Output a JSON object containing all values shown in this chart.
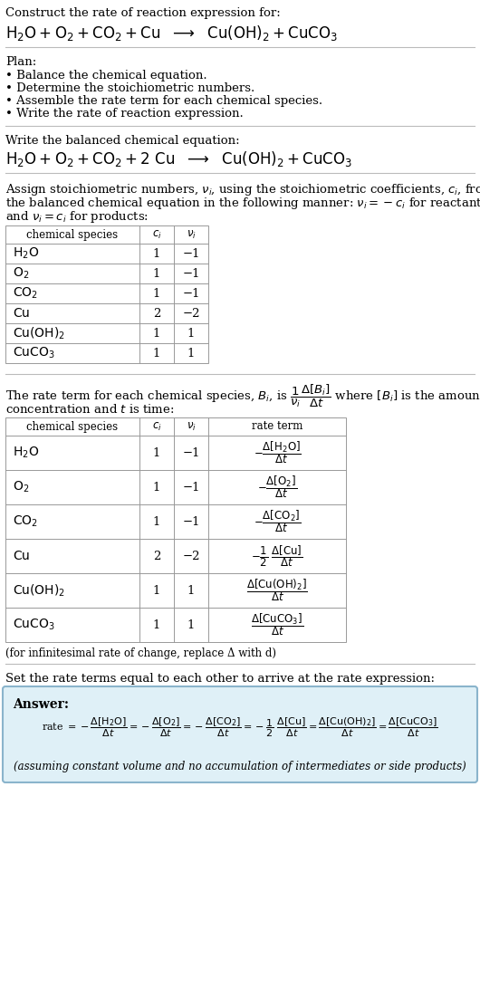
{
  "bg_color": "#ffffff",
  "title_line1": "Construct the rate of reaction expression for:",
  "plan_header": "Plan:",
  "plan_items": [
    "• Balance the chemical equation.",
    "• Determine the stoichiometric numbers.",
    "• Assemble the rate term for each chemical species.",
    "• Write the rate of reaction expression."
  ],
  "balanced_header": "Write the balanced chemical equation:",
  "table1_rows": [
    [
      "H_2O",
      "1",
      "−1"
    ],
    [
      "O_2",
      "1",
      "−1"
    ],
    [
      "CO_2",
      "1",
      "−1"
    ],
    [
      "Cu",
      "2",
      "−2"
    ],
    [
      "Cu(OH)_2",
      "1",
      "1"
    ],
    [
      "CuCO_3",
      "1",
      "1"
    ]
  ],
  "table2_rows": [
    [
      "H_2O",
      "1",
      "−1"
    ],
    [
      "O_2",
      "1",
      "−1"
    ],
    [
      "CO_2",
      "1",
      "−1"
    ],
    [
      "Cu",
      "2",
      "−2"
    ],
    [
      "Cu(OH)_2",
      "1",
      "1"
    ],
    [
      "CuCO_3",
      "1",
      "1"
    ]
  ],
  "infinitesimal_note": "(for infinitesimal rate of change, replace Δ with d)",
  "set_equal_text": "Set the rate terms equal to each other to arrive at the rate expression:",
  "answer_label": "Answer:",
  "answer_box_color": "#dff0f7",
  "answer_box_border": "#8ab4cc",
  "assuming_note": "(assuming constant volume and no accumulation of intermediates or side products)"
}
